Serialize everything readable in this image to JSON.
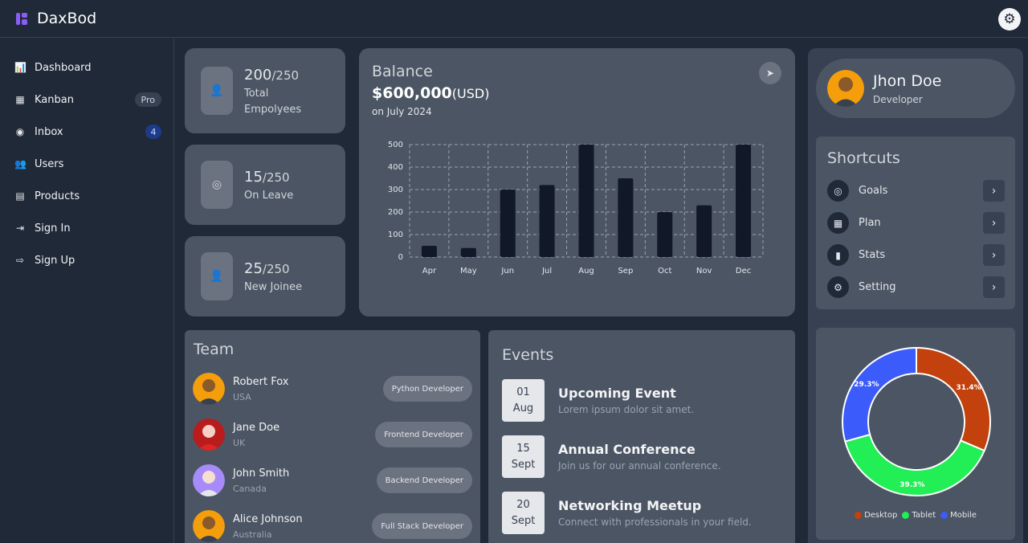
{
  "app": {
    "name": "DaxBod"
  },
  "sidebar": {
    "items": [
      {
        "label": "Dashboard",
        "icon": "bar-chart-icon"
      },
      {
        "label": "Kanban",
        "icon": "calendar-icon",
        "badge": "Pro"
      },
      {
        "label": "Inbox",
        "icon": "messenger-icon",
        "badge": "4"
      },
      {
        "label": "Users",
        "icon": "users-icon"
      },
      {
        "label": "Products",
        "icon": "list-icon"
      },
      {
        "label": "Sign In",
        "icon": "sign-in-icon"
      },
      {
        "label": "Sign Up",
        "icon": "sign-up-icon"
      }
    ]
  },
  "stats": [
    {
      "value": "200",
      "total": "/250",
      "label": "Total Empolyees",
      "icon": "user-icon"
    },
    {
      "value": "15",
      "total": "/250",
      "label": "On Leave",
      "icon": "eye-slash-icon"
    },
    {
      "value": "25",
      "total": "/250",
      "label": "New Joinee",
      "icon": "user-plus-icon"
    }
  ],
  "balance": {
    "title": "Balance",
    "amount": "$600,000",
    "unit": "(USD)",
    "date": "on July 2024"
  },
  "chart_data": [
    {
      "type": "bar",
      "categories": [
        "Apr",
        "May",
        "Jun",
        "Jul",
        "Aug",
        "Sep",
        "Oct",
        "Nov",
        "Dec"
      ],
      "values": [
        50,
        40,
        300,
        320,
        500,
        350,
        200,
        230,
        500
      ],
      "ylim": [
        0,
        500
      ],
      "yticks": [
        0,
        100,
        200,
        300,
        400,
        500
      ],
      "grid": true,
      "bar_color": "#111827"
    },
    {
      "type": "pie",
      "donut": true,
      "categories": [
        "Desktop",
        "Tablet",
        "Mobile"
      ],
      "values": [
        31.4,
        39.3,
        29.3
      ],
      "labels": [
        "31.4%",
        "39.3%",
        "29.3%"
      ],
      "colors": [
        "#c2410c",
        "#22ee55",
        "#3b5bfb"
      ],
      "legend": "bottom"
    }
  ],
  "team": {
    "title": "Team",
    "members": [
      {
        "name": "Robert Fox",
        "country": "USA",
        "role": "Python Developer"
      },
      {
        "name": "Jane Doe",
        "country": "UK",
        "role": "Frontend Developer"
      },
      {
        "name": "John Smith",
        "country": "Canada",
        "role": "Backend Developer"
      },
      {
        "name": "Alice Johnson",
        "country": "Australia",
        "role": "Full Stack Developer"
      }
    ]
  },
  "events": {
    "title": "Events",
    "items": [
      {
        "day": "01",
        "month": "Aug",
        "title": "Upcoming Event",
        "desc": "Lorem ipsum dolor sit amet."
      },
      {
        "day": "15",
        "month": "Sept",
        "title": "Annual Conference",
        "desc": "Join us for our annual conference."
      },
      {
        "day": "20",
        "month": "Sept",
        "title": "Networking Meetup",
        "desc": "Connect with professionals in your field."
      }
    ]
  },
  "profile": {
    "name": "Jhon Doe",
    "role": "Developer"
  },
  "shortcuts": {
    "title": "Shortcuts",
    "items": [
      {
        "label": "Goals",
        "icon": "target-icon"
      },
      {
        "label": "Plan",
        "icon": "calendar-icon"
      },
      {
        "label": "Stats",
        "icon": "bar-chart-icon"
      },
      {
        "label": "Setting",
        "icon": "gear-icon"
      }
    ]
  }
}
